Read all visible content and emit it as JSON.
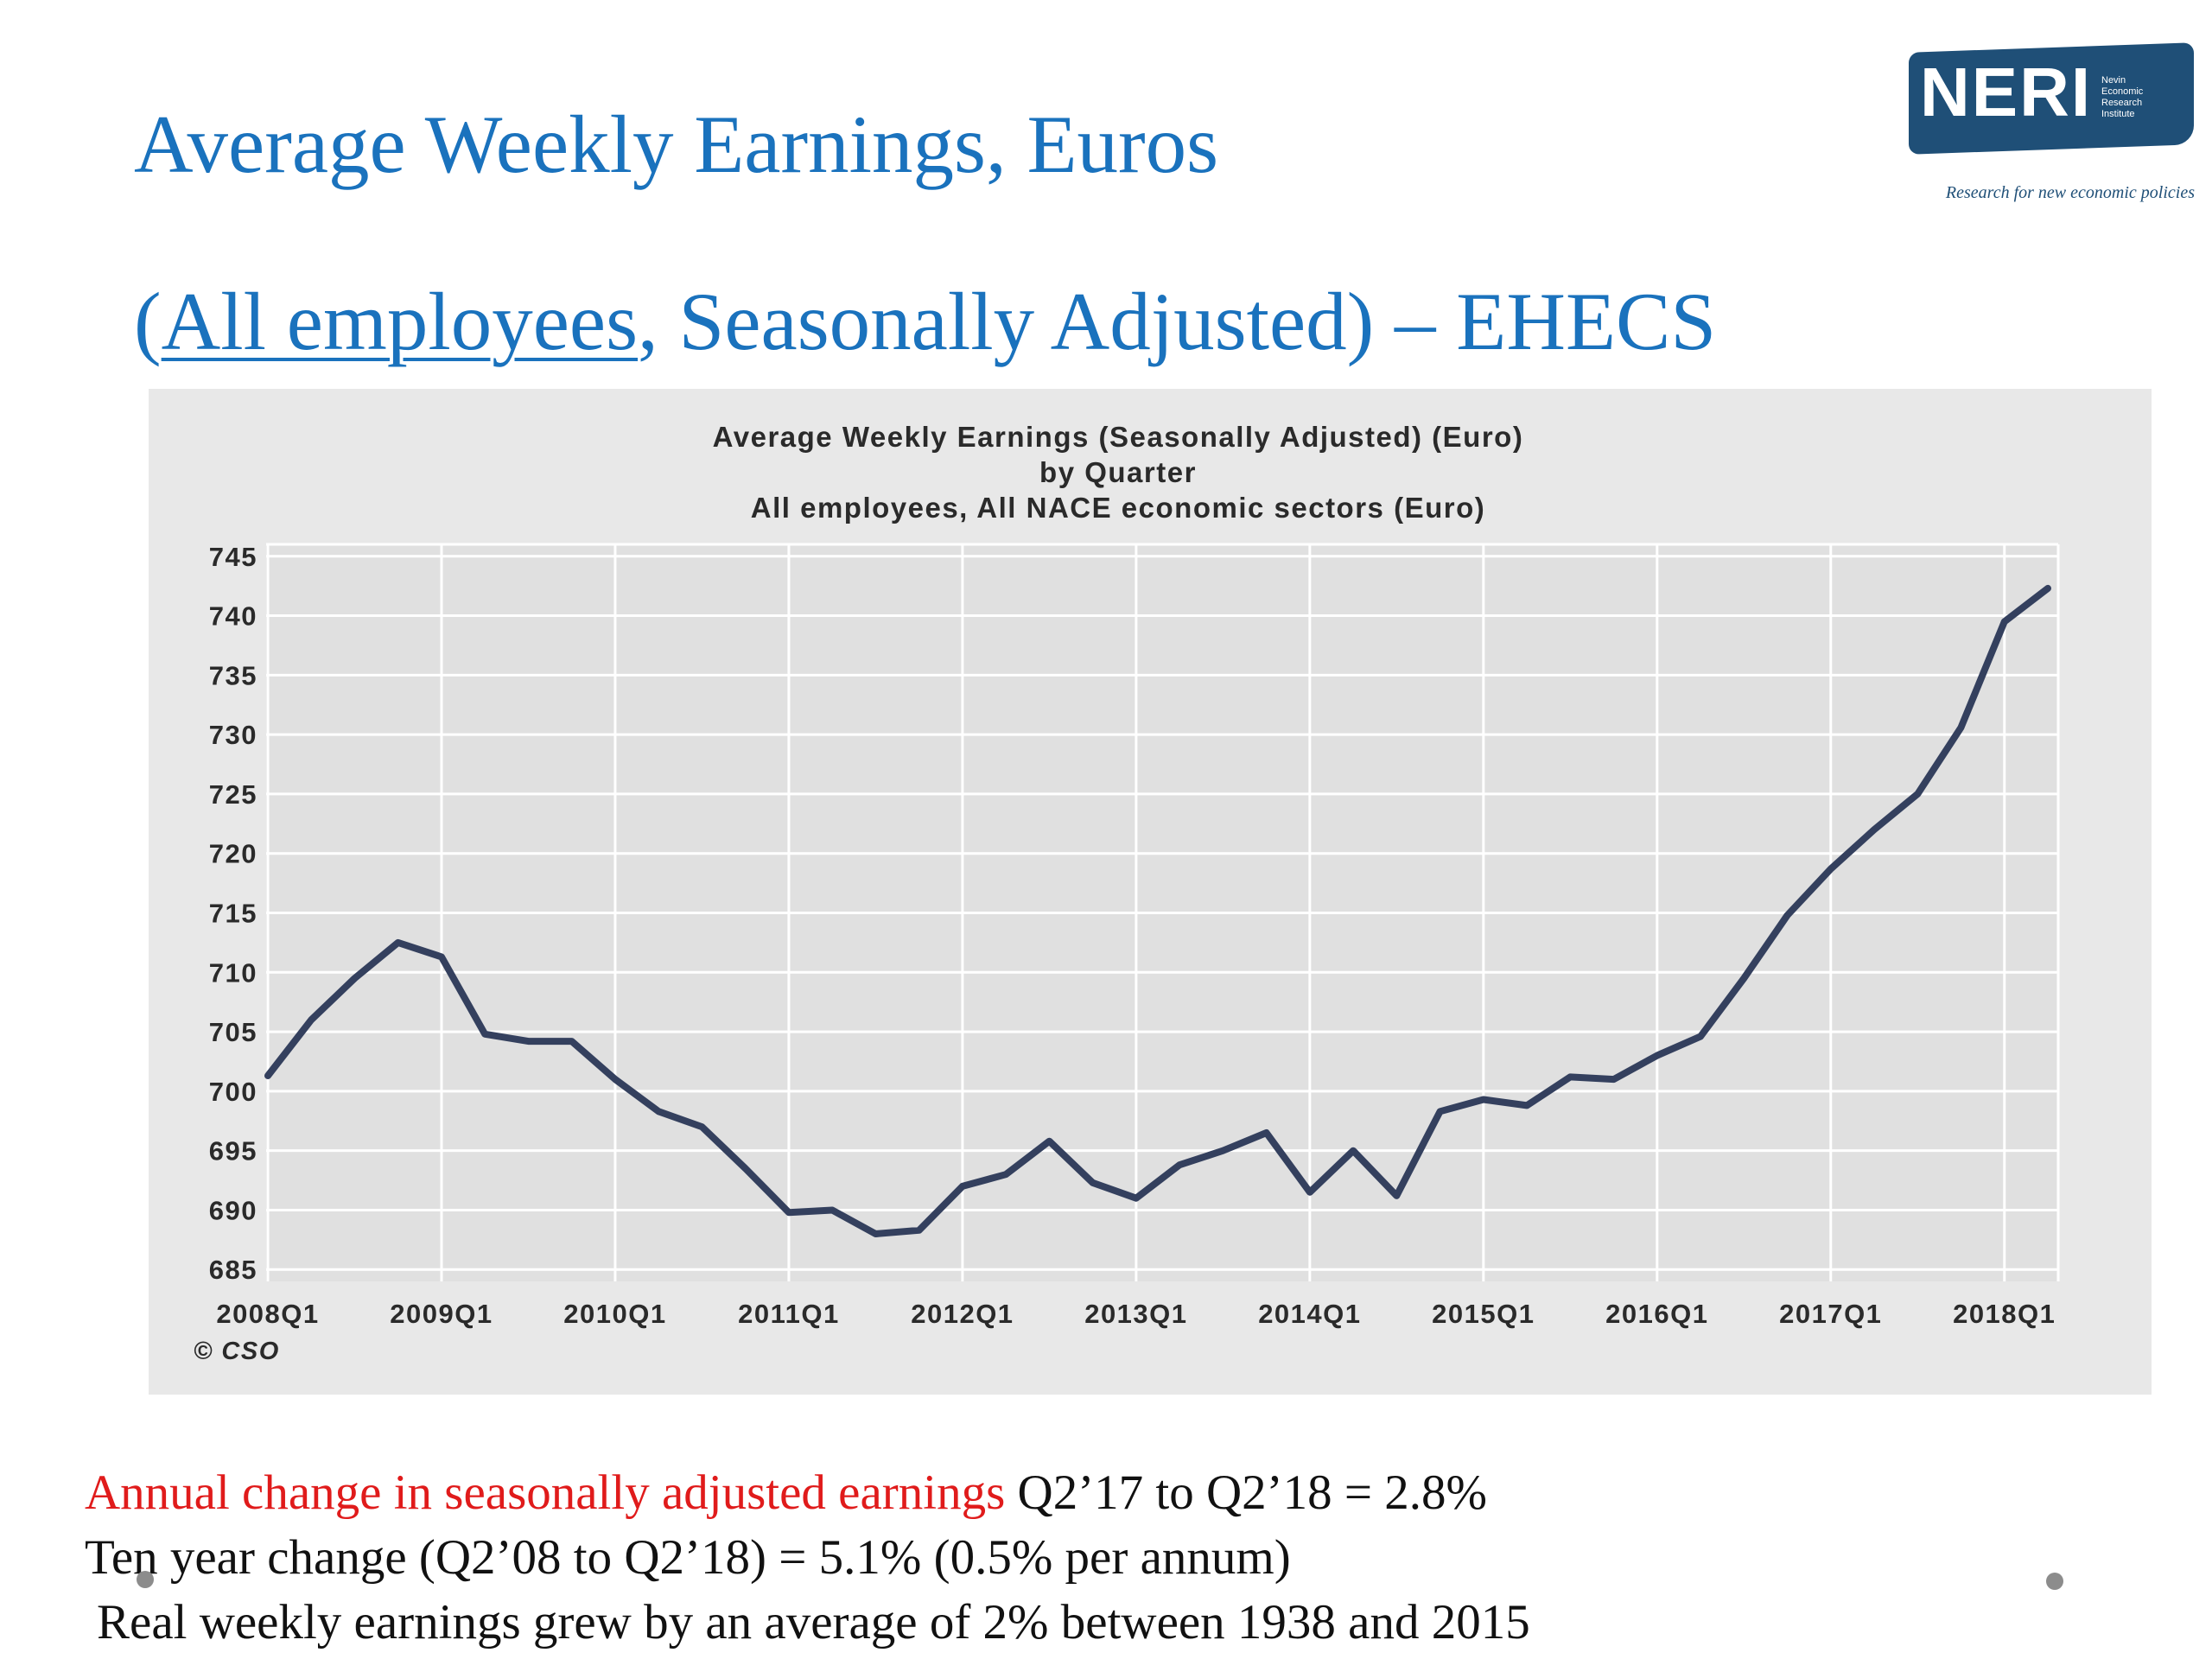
{
  "slide": {
    "title_line1": "Average Weekly Earnings, Euros",
    "title_line2_open": "(",
    "title_line2_underlined": "All employees",
    "title_line2_rest": ", Seasonally Adjusted) – EHECS"
  },
  "logo": {
    "wordmark": "NERI",
    "subtext": [
      "Nevin",
      "Economic",
      "Research",
      "Institute"
    ],
    "tagline": "Research for new economic policies",
    "colors": {
      "badge": "#1f4f77",
      "text": "#ffffff"
    }
  },
  "chart_data": {
    "type": "line",
    "title_lines": [
      "Average Weekly Earnings (Seasonally Adjusted) (Euro)",
      "by Quarter",
      "All employees, All NACE economic sectors (Euro)"
    ],
    "y_ticks": [
      685,
      690,
      695,
      700,
      705,
      710,
      715,
      720,
      725,
      730,
      735,
      740,
      745
    ],
    "ylim": [
      684,
      746
    ],
    "x_tick_labels": [
      "2008Q1",
      "2009Q1",
      "2010Q1",
      "2011Q1",
      "2012Q1",
      "2013Q1",
      "2014Q1",
      "2015Q1",
      "2016Q1",
      "2017Q1",
      "2018Q1"
    ],
    "x": [
      "2008Q1",
      "2008Q2",
      "2008Q3",
      "2008Q4",
      "2009Q1",
      "2009Q2",
      "2009Q3",
      "2009Q4",
      "2010Q1",
      "2010Q2",
      "2010Q3",
      "2010Q4",
      "2011Q1",
      "2011Q2",
      "2011Q3",
      "2011Q4",
      "2012Q1",
      "2012Q2",
      "2012Q3",
      "2012Q4",
      "2013Q1",
      "2013Q2",
      "2013Q3",
      "2013Q4",
      "2014Q1",
      "2014Q2",
      "2014Q3",
      "2014Q4",
      "2015Q1",
      "2015Q2",
      "2015Q3",
      "2015Q4",
      "2016Q1",
      "2016Q2",
      "2016Q3",
      "2016Q4",
      "2017Q1",
      "2017Q2",
      "2017Q3",
      "2017Q4",
      "2018Q1",
      "2018Q2"
    ],
    "series": [
      {
        "values": [
          701.3,
          706.0,
          709.5,
          712.5,
          711.3,
          704.8,
          704.2,
          704.2,
          701.0,
          698.3,
          697.0,
          693.5,
          689.8,
          690.0,
          688.0,
          688.3,
          692.0,
          693.0,
          695.8,
          692.3,
          691.0,
          693.8,
          695.0,
          696.5,
          691.5,
          695.0,
          691.2,
          698.3,
          699.3,
          698.8,
          701.2,
          701.0,
          703.0,
          704.6,
          709.5,
          714.8,
          718.7,
          722.0,
          725.0,
          730.6,
          739.5,
          742.3
        ],
        "color": "#34405e"
      }
    ],
    "grid": true,
    "credit": "© CSO",
    "colors": {
      "panel": "#e8e8e8",
      "plot": "#e0e0e0",
      "line": "#34405e",
      "grid": "#ffffff"
    }
  },
  "notes": {
    "line1_red": "Annual change in seasonally adjusted earnings",
    "line1_rest": " Q2’17 to Q2’18 = 2.8%",
    "line2": "Ten year change (Q2’08 to Q2’18) = 5.1% (0.5% per annum)",
    "line3": "Real weekly earnings grew by an average of 2% between 1938 and 2015",
    "colors": {
      "highlight": "#e01b1b"
    }
  }
}
